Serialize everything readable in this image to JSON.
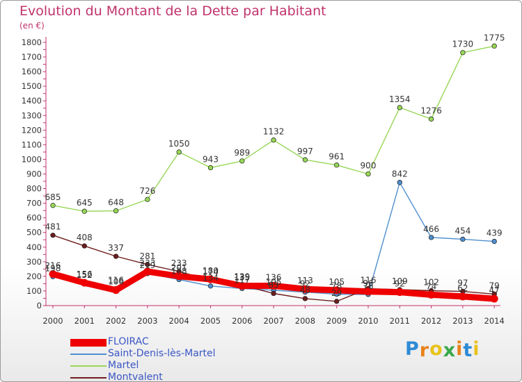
{
  "title": "Evolution du Montant de la Dette par Habitant",
  "unit": "(en €)",
  "logo": {
    "text": "Proxiti",
    "letter_colors": [
      "#2d8ad6",
      "#e8821b",
      "#e8c21b",
      "#3aa84a",
      "#e8821b",
      "#2d8ad6",
      "#e8c21b"
    ]
  },
  "chart_data": {
    "type": "line",
    "title": "Evolution du Montant de la Dette par Habitant",
    "ylabel": "(en €)",
    "xlabel": "",
    "x": [
      "2000",
      "2001",
      "2002",
      "2003",
      "2004",
      "2005",
      "2006",
      "2007",
      "2008",
      "2009",
      "2010",
      "2011",
      "2012",
      "2013",
      "2014"
    ],
    "ylim": [
      0,
      1800
    ],
    "yticks": [
      0,
      100,
      200,
      300,
      400,
      500,
      600,
      700,
      800,
      900,
      1000,
      1100,
      1200,
      1300,
      1400,
      1500,
      1600,
      1700,
      1800
    ],
    "grid": false,
    "legend_position": "bottom-left",
    "series": [
      {
        "name": "FLOIRAC",
        "color": "#ee0000",
        "values": [
          216,
          156,
          106,
          233,
          201,
          180,
          135,
          136,
          113,
          105,
          96,
          92,
          74,
          62,
          47
        ]
      },
      {
        "name": "Saint-Denis-lès-Martel",
        "color": "#4f8fcf",
        "values": [
          198,
          152,
          116,
          219,
          178,
          134,
          117,
          105,
          92,
          78,
          76,
          842,
          466,
          454,
          439
        ]
      },
      {
        "name": "Martel",
        "color": "#97d756",
        "values": [
          685,
          645,
          648,
          726,
          1050,
          943,
          989,
          1132,
          997,
          961,
          900,
          1354,
          1276,
          1730,
          1775
        ]
      },
      {
        "name": "Montvalent",
        "color": "#6e1d1d",
        "values": [
          481,
          408,
          337,
          281,
          233,
          174,
          139,
          83,
          48,
          29,
          116,
          109,
          102,
          97,
          79
        ]
      }
    ]
  }
}
